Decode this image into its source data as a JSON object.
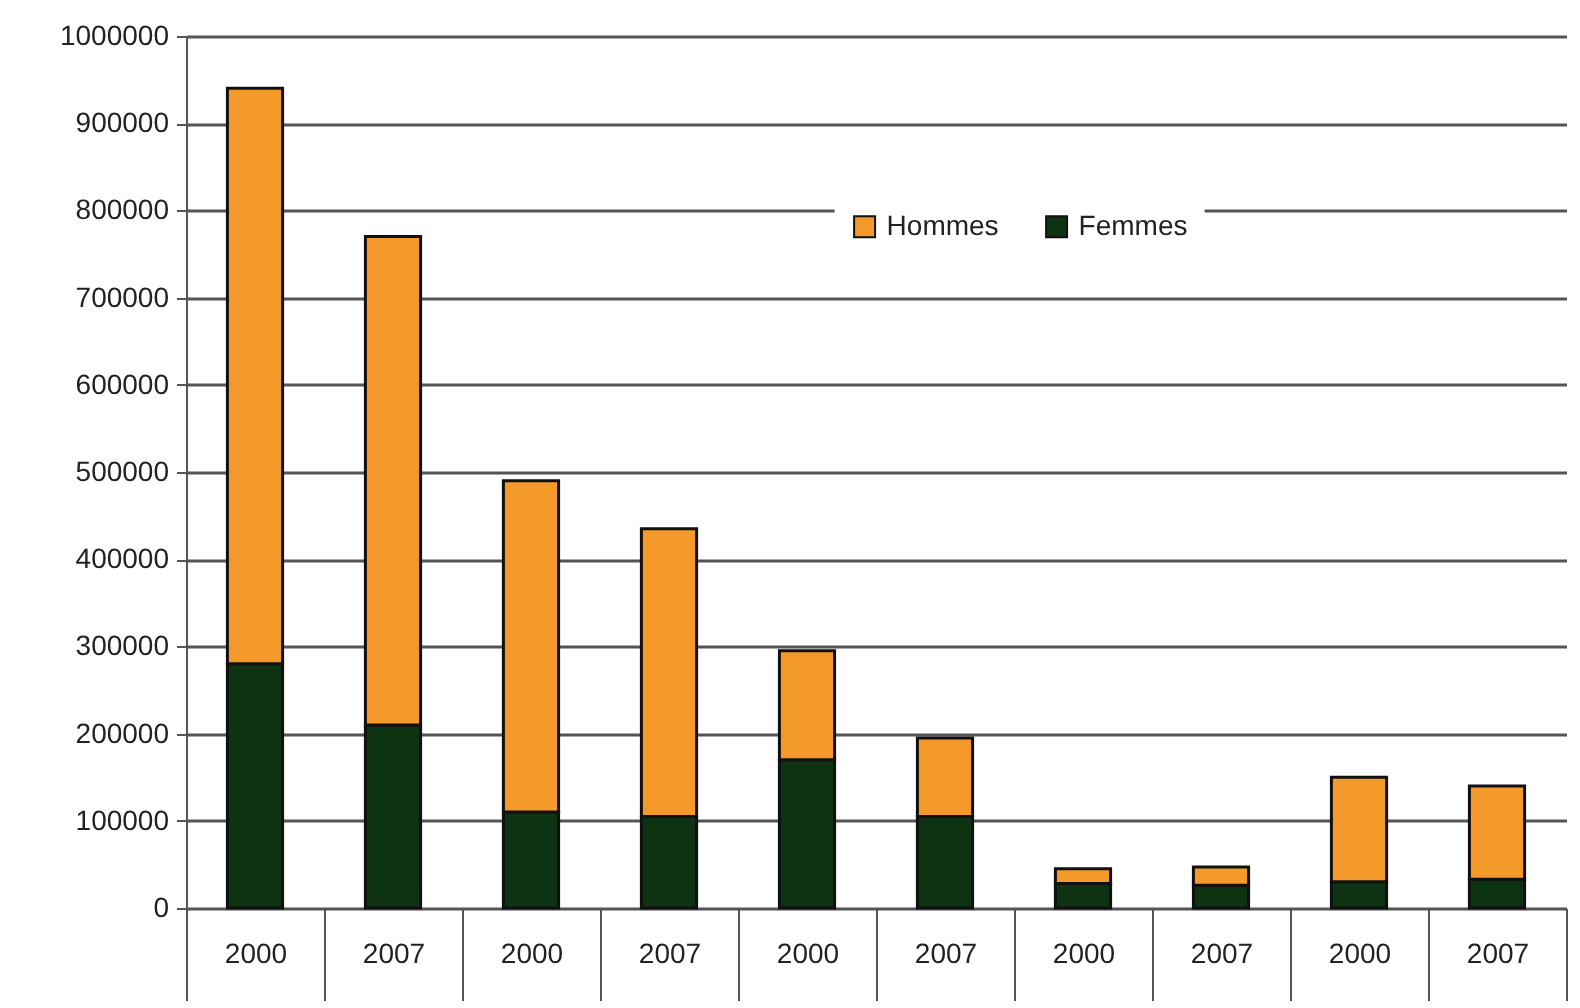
{
  "chart_data": {
    "type": "bar",
    "stacked": true,
    "categories": [
      "2000",
      "2007",
      "2000",
      "2007",
      "2000",
      "2007",
      "2000",
      "2007",
      "2000",
      "2007"
    ],
    "series": [
      {
        "name": "Femmes",
        "color": "#0d3312",
        "values": [
          280000,
          210000,
          110000,
          105000,
          170000,
          105000,
          28000,
          26000,
          30000,
          33000
        ]
      },
      {
        "name": "Hommes",
        "color": "#f39a2b",
        "values": [
          660000,
          560000,
          380000,
          330000,
          125000,
          90000,
          17000,
          21000,
          120000,
          107000
        ]
      }
    ],
    "ylim": [
      0,
      1000000
    ],
    "yticks": [
      0,
      100000,
      200000,
      300000,
      400000,
      500000,
      600000,
      700000,
      800000,
      900000,
      1000000
    ],
    "grid": "y",
    "legend": "top"
  }
}
